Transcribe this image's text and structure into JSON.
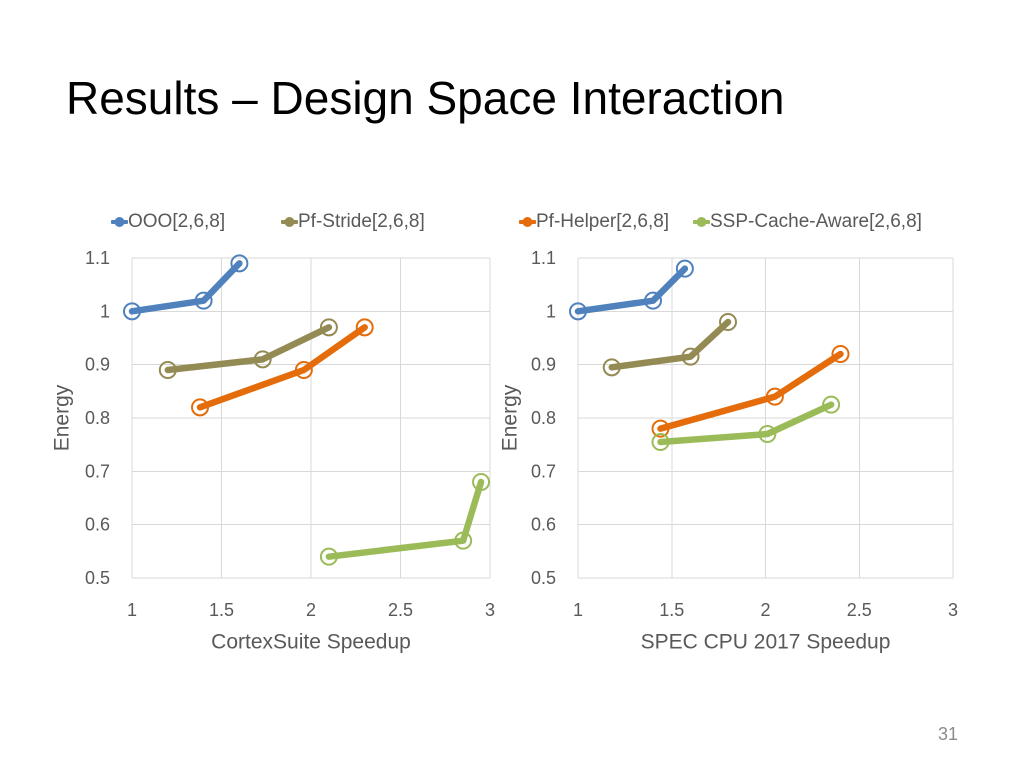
{
  "slide": {
    "title": "Results – Design Space Interaction",
    "page_number": "31"
  },
  "chart_data": [
    {
      "type": "line",
      "xlabel": "CortexSuite Speedup",
      "ylabel": "Energy",
      "xlim": [
        1,
        3
      ],
      "ylim": [
        0.5,
        1.1
      ],
      "xticks": [
        1,
        1.5,
        2,
        2.5,
        3
      ],
      "yticks": [
        0.5,
        0.6,
        0.7,
        0.8,
        0.9,
        1,
        1.1
      ],
      "grid": true,
      "legend": "top",
      "series": [
        {
          "name": "OOO[2,6,8]",
          "color": "#4F81BD",
          "x": [
            1,
            1.4,
            1.6
          ],
          "y": [
            1,
            1.02,
            1.09
          ]
        },
        {
          "name": "Pf-Stride[2,6,8]",
          "color": "#948A54",
          "x": [
            1.2,
            1.73,
            2.1
          ],
          "y": [
            0.89,
            0.91,
            0.97
          ]
        },
        {
          "name": "Pf-Helper[2,6,8]",
          "color": "#E46C0A",
          "x": [
            1.38,
            1.96,
            2.3
          ],
          "y": [
            0.82,
            0.89,
            0.97
          ]
        },
        {
          "name": "SSP-Cache-Aware[2,6,8]",
          "color": "#9BBB59",
          "x": [
            2.1,
            2.85,
            2.95
          ],
          "y": [
            0.54,
            0.57,
            0.68
          ]
        }
      ]
    },
    {
      "type": "line",
      "xlabel": "SPEC CPU 2017 Speedup",
      "ylabel": "Energy",
      "xlim": [
        1,
        3
      ],
      "ylim": [
        0.5,
        1.1
      ],
      "xticks": [
        1,
        1.5,
        2,
        2.5,
        3
      ],
      "yticks": [
        0.5,
        0.6,
        0.7,
        0.8,
        0.9,
        1,
        1.1
      ],
      "grid": true,
      "legend": "top",
      "series": [
        {
          "name": "OOO[2,6,8]",
          "color": "#4F81BD",
          "x": [
            1,
            1.4,
            1.57
          ],
          "y": [
            1,
            1.02,
            1.08
          ]
        },
        {
          "name": "Pf-Stride[2,6,8]",
          "color": "#948A54",
          "x": [
            1.18,
            1.6,
            1.8
          ],
          "y": [
            0.895,
            0.915,
            0.98
          ]
        },
        {
          "name": "Pf-Helper[2,6,8]",
          "color": "#E46C0A",
          "x": [
            1.44,
            2.05,
            2.4
          ],
          "y": [
            0.78,
            0.84,
            0.92
          ]
        },
        {
          "name": "SSP-Cache-Aware[2,6,8]",
          "color": "#9BBB59",
          "x": [
            1.44,
            2.01,
            2.35
          ],
          "y": [
            0.755,
            0.77,
            0.825
          ]
        }
      ]
    }
  ]
}
